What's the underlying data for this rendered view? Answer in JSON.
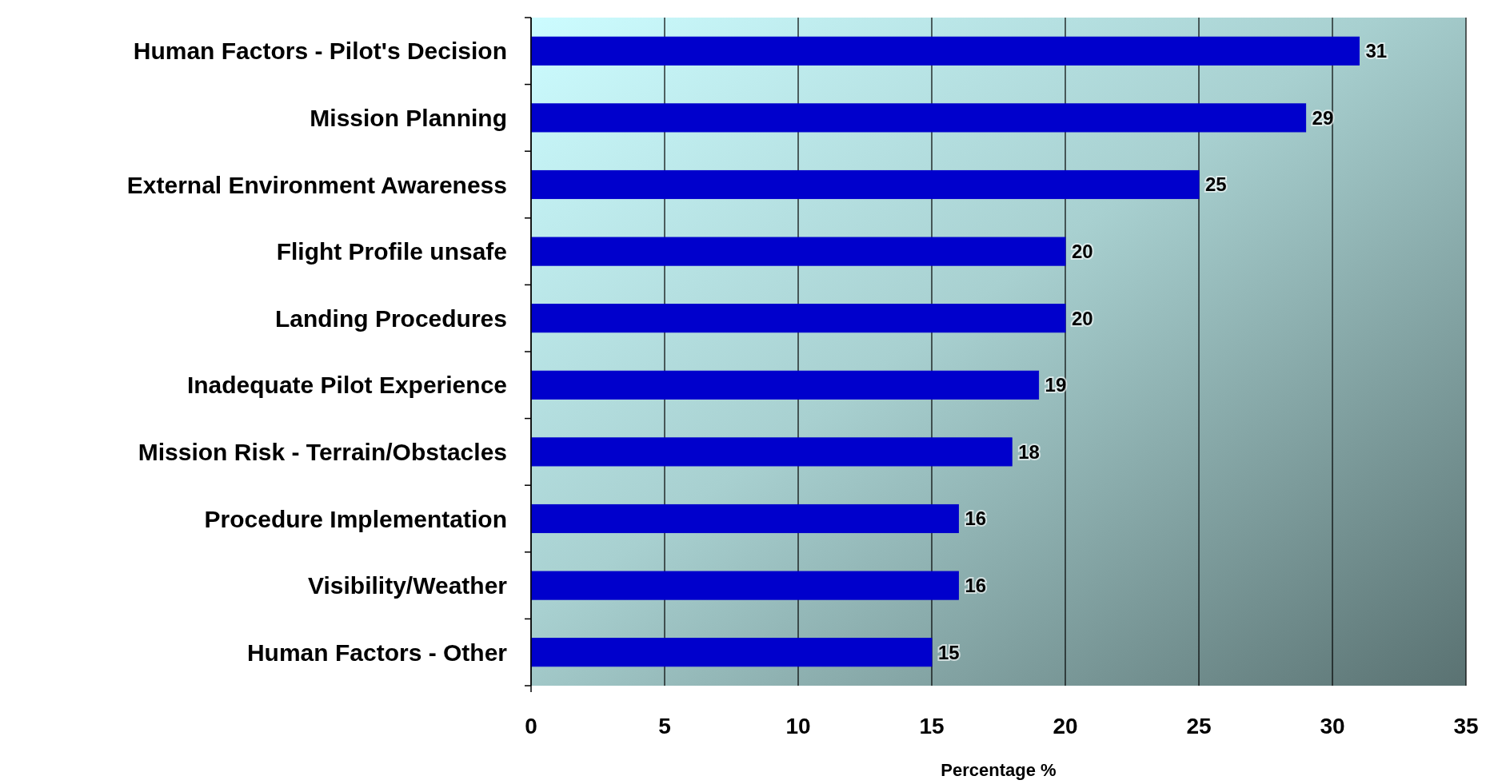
{
  "chart_data": {
    "type": "bar",
    "orientation": "horizontal",
    "xlabel": "Percentage %",
    "categories": [
      "Human Factors - Pilot's Decision",
      "Mission Planning",
      "External Environment Awareness",
      "Flight Profile unsafe",
      "Landing Procedures",
      "Inadequate Pilot Experience",
      "Mission Risk - Terrain/Obstacles",
      "Procedure Implementation",
      "Visibility/Weather",
      "Human Factors - Other"
    ],
    "values": [
      31,
      29,
      25,
      20,
      20,
      19,
      18,
      16,
      16,
      15
    ],
    "color": "#0000cc",
    "xlim": [
      0,
      35
    ],
    "xticks": [
      0,
      5,
      10,
      15,
      20,
      25,
      30,
      35
    ],
    "grid": "x",
    "data_labels": true
  }
}
